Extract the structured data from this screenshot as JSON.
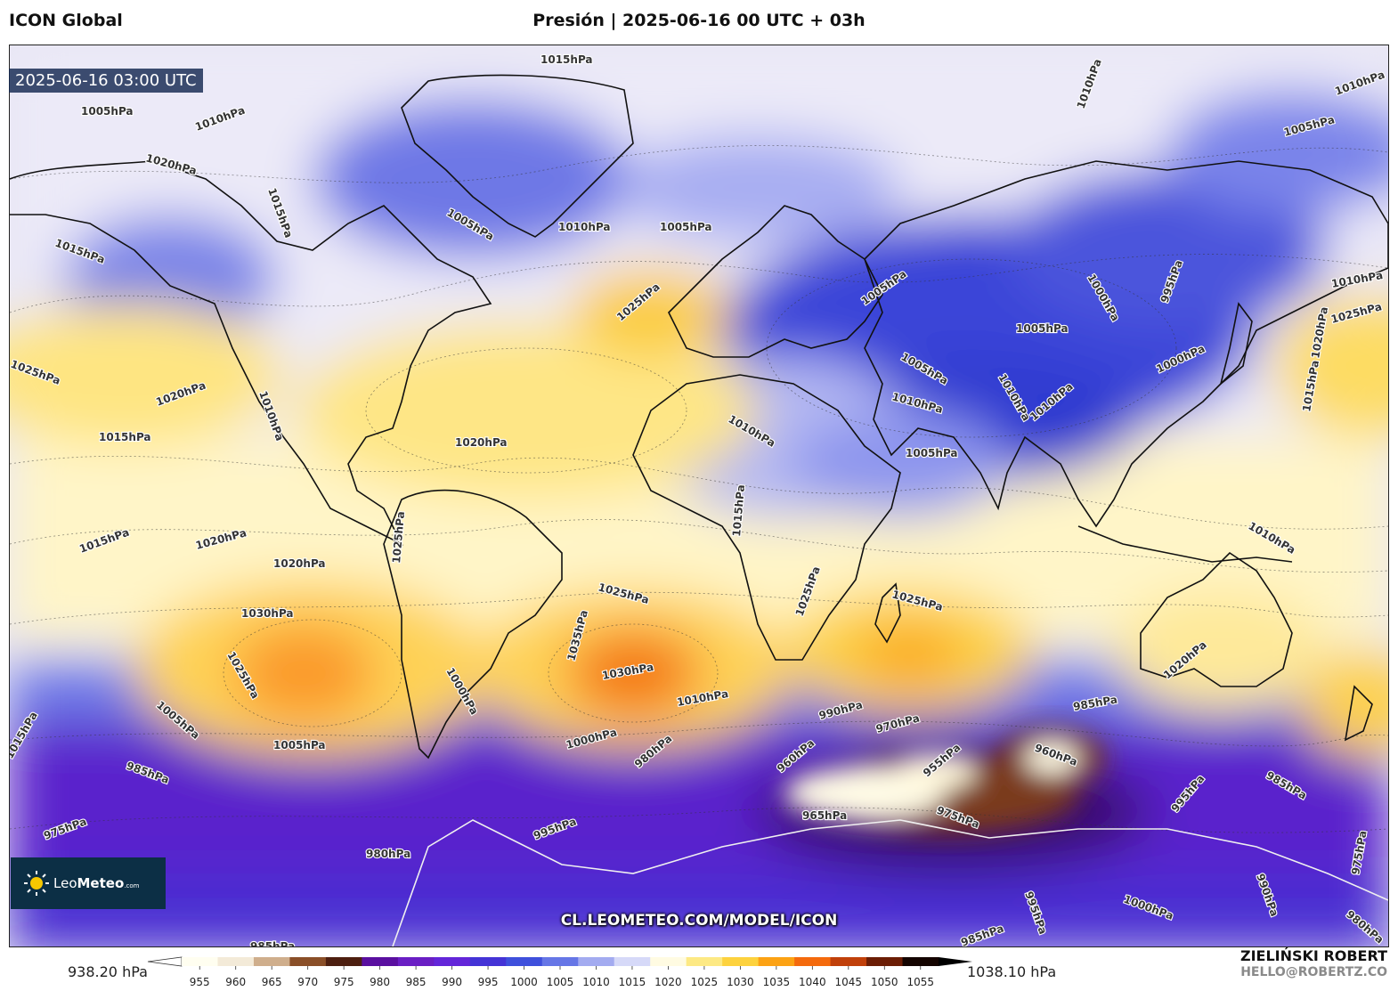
{
  "header": {
    "model": "ICON Global",
    "title": "Presión | 2025-06-16 00 UTC + 03h"
  },
  "map": {
    "timestamp": "2025-06-16 03:00 UTC",
    "watermark": "CL.LEOMETEO.COM/MODEL/ICON",
    "isobar_labels": [
      "1015hPa",
      "1005hPa",
      "1010hPa",
      "1020hPa",
      "1015hPa",
      "1005hPa",
      "1010hPa",
      "1005hPa",
      "1010hPa",
      "1005hPa",
      "1010hPa",
      "1015hPa",
      "1010hPa",
      "1010hPa",
      "1025hPa",
      "1020hPa",
      "1015hPa",
      "1010hPa",
      "1020hPa",
      "1025hPa",
      "1005hPa",
      "1000hPa",
      "995hPa",
      "1005hPa",
      "1020hPa",
      "1005hPa",
      "1000hPa",
      "1010hPa",
      "1010hPa",
      "1010hPa",
      "1005hPa",
      "1015hPa",
      "1015hPa",
      "1025hPa",
      "1010hPa",
      "1015hPa",
      "1020hPa",
      "1025hPa",
      "1020hPa",
      "1025hPa",
      "1030hPa",
      "1025hPa",
      "1035hPa",
      "1030hPa",
      "1025hPa",
      "1000hPa",
      "1005hPa",
      "1000hPa",
      "1010hPa",
      "1020hPa",
      "1025hPa",
      "1005hPa",
      "1015hPa",
      "990hPa",
      "970hPa",
      "960hPa",
      "955hPa",
      "960hPa",
      "985hPa",
      "980hPa",
      "985hPa",
      "975hPa",
      "995hPa",
      "965hPa",
      "975hPa",
      "995hPa",
      "980hPa",
      "985hPa",
      "985hPa",
      "995hPa",
      "990hPa",
      "1000hPa",
      "975hPa",
      "980hPa",
      "985hPa"
    ]
  },
  "branding": {
    "logo_main": "Leo",
    "logo_bold": "Meteo",
    "logo_suffix": ".com"
  },
  "colorbar": {
    "min_label": "938.20 hPa",
    "max_label": "1038.10 hPa",
    "ticks": [
      "955",
      "960",
      "965",
      "970",
      "975",
      "980",
      "985",
      "990",
      "995",
      "1000",
      "1005",
      "1010",
      "1015",
      "1020",
      "1025",
      "1030",
      "1035",
      "1040",
      "1045",
      "1050",
      "1055"
    ],
    "colors": [
      "#fffef0",
      "#f3ead8",
      "#cfae8c",
      "#8a4f28",
      "#4d1f10",
      "#5a0fa0",
      "#6a1fc4",
      "#6326d9",
      "#4433d6",
      "#3f50dc",
      "#6676e6",
      "#a3abf0",
      "#d6d9f8",
      "#fffbe2",
      "#fde984",
      "#fdd23e",
      "#fca214",
      "#f46a0d",
      "#c0400a",
      "#6b1d05",
      "#140400"
    ]
  },
  "author": {
    "name": "ZIELIŃSKI ROBERT",
    "email": "HELLO@ROBERTZ.CO"
  }
}
